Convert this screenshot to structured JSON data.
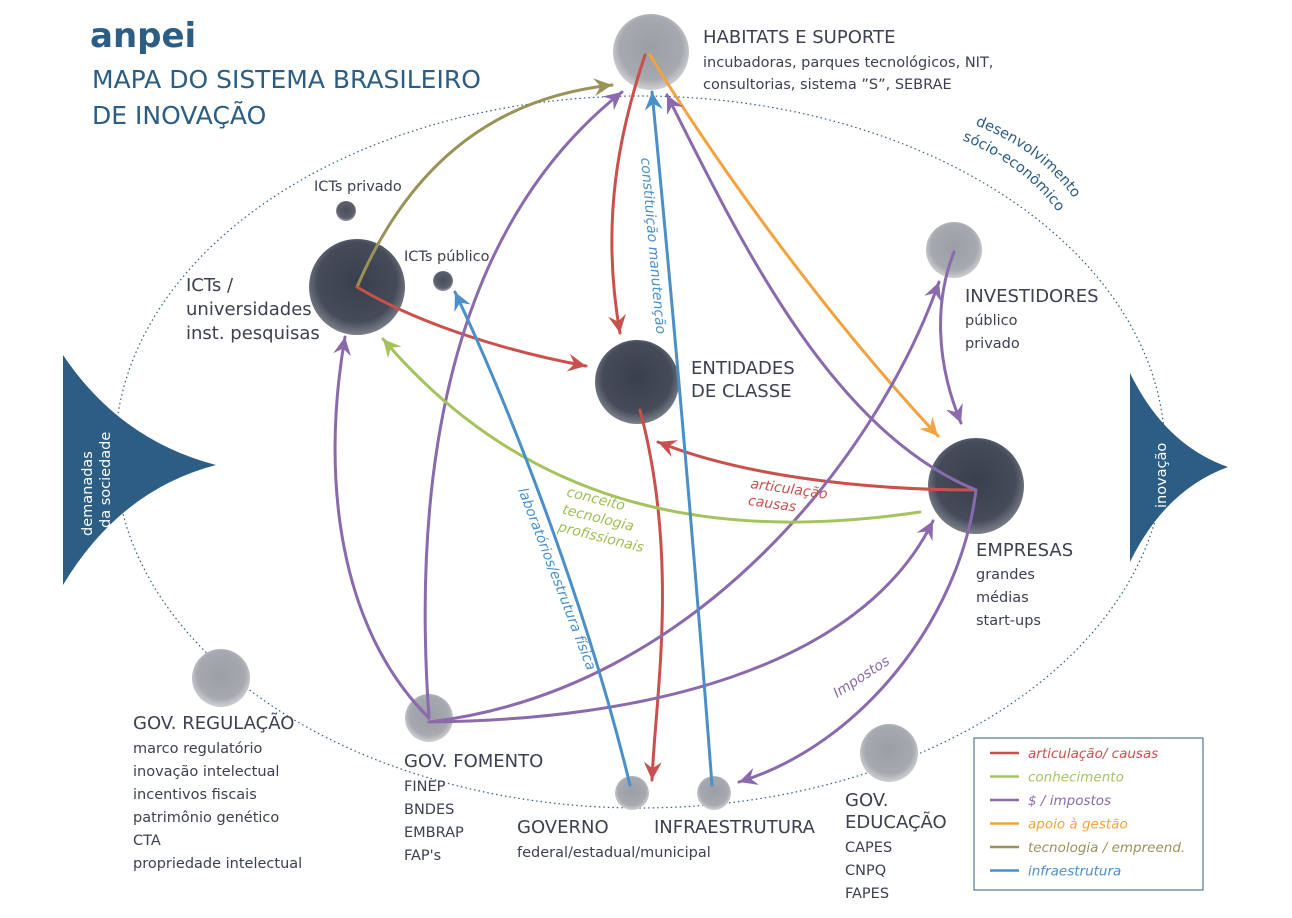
{
  "brand": "anpei",
  "title": {
    "line1": "MAPA DO SISTEMA BRASILEIRO",
    "line2": "DE INOVAÇÃO"
  },
  "colors": {
    "articulacao": "#c9504c",
    "conhecimento": "#a5c35d",
    "impostos": "#8a6aad",
    "gestao": "#f2a23e",
    "tecnologia": "#9a9358",
    "infraestrutura": "#4b8fc8",
    "brand": "#2b5d85",
    "node_dark": "#3f4554",
    "node_light": "#a5a8ae"
  },
  "nodes": {
    "habitats": {
      "title": "HABITATS E SUPORTE",
      "lines": [
        "incubadoras, parques tecnológicos, NIT,",
        "consultorias, sistema ”S”, SEBRAE"
      ]
    },
    "icts_privado": {
      "title": "ICTs privado"
    },
    "icts_publico": {
      "title": "ICTs público"
    },
    "icts": {
      "lines": [
        "ICTs /",
        "universidades",
        "inst. pesquisas"
      ]
    },
    "investidores": {
      "title": "INVESTIDORES",
      "lines": [
        "público",
        "privado"
      ]
    },
    "entidades": {
      "lines": [
        "ENTIDADES",
        "DE CLASSE"
      ]
    },
    "empresas": {
      "title": "EMPRESAS",
      "lines": [
        "grandes",
        "médias",
        "start-ups"
      ]
    },
    "gov_regulacao": {
      "title": "GOV. REGULAÇÃO",
      "lines": [
        "marco regulatório",
        "inovação intelectual",
        "incentivos fiscais",
        "patrimônio genético",
        "CTA",
        "propriedade intelectual"
      ]
    },
    "gov_fomento": {
      "title": "GOV. FOMENTO",
      "lines": [
        "FINEP",
        "BNDES",
        "EMBRAP",
        "FAP's"
      ]
    },
    "governo": {
      "title": "GOVERNO",
      "sub": "federal/estadual/municipal"
    },
    "infraestrutura": {
      "title": "INFRAESTRUTURA"
    },
    "gov_educacao": {
      "lines": [
        "GOV.",
        "EDUCAÇÃO"
      ],
      "items": [
        "CAPES",
        "CNPQ",
        "FAPES"
      ]
    }
  },
  "side_labels": {
    "left": [
      "demanadas",
      "da sociedade"
    ],
    "right": "inovação",
    "top_right": [
      "desenvolvimento",
      "sócio-econômico"
    ]
  },
  "edge_labels": {
    "constituicao": "constituição manutenção",
    "laboratorios": "laboratórios/estrutura física",
    "conceito": [
      "conceito",
      "tecnologia",
      "profissionais"
    ],
    "articulacao": [
      "articulação",
      "causas"
    ],
    "impostos": "Impostos"
  },
  "legend": [
    {
      "label": "articulação/ causas",
      "color": "#c9504c"
    },
    {
      "label": "conhecimento",
      "color": "#a5c35d"
    },
    {
      "label": "$ / impostos",
      "color": "#8a6aad"
    },
    {
      "label": "apoio à gestão",
      "color": "#f2a23e"
    },
    {
      "label": "tecnologia / empreend.",
      "color": "#9a9358"
    },
    {
      "label": "infraestrutura",
      "color": "#4b8fc8"
    }
  ]
}
